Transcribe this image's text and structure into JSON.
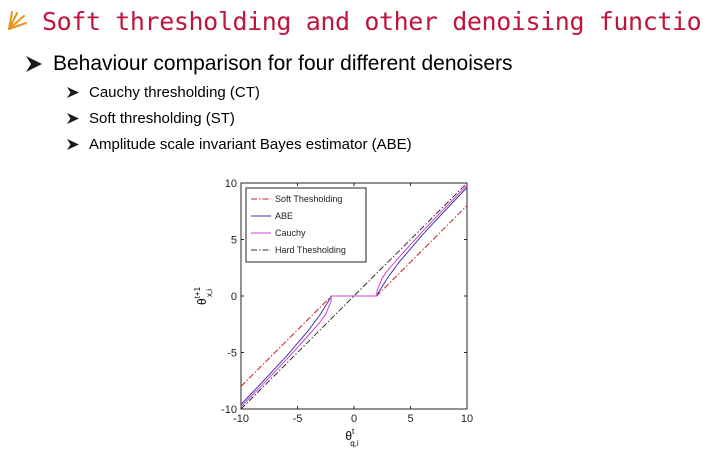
{
  "slide": {
    "title": "Soft thresholding and other denoising functions",
    "main_bullet": "Behaviour comparison for four different denoisers",
    "sub_bullets": [
      "Cauchy thresholding (CT)",
      "Soft thresholding (ST)",
      "Amplitude scale invariant Bayes estimator (ABE)"
    ],
    "title_color": "#c0143c",
    "icon": "sparkle-icon",
    "bullet_icon": "arrow-bullet-icon"
  },
  "chart_data": {
    "type": "line",
    "title": "",
    "xlabel_base": "θ",
    "xlabel_sup": "t",
    "xlabel_sub": "q,i",
    "ylabel_base": "θ",
    "ylabel_sup": "t+1",
    "ylabel_sub": "x,i",
    "xlim": [
      -10,
      10
    ],
    "ylim": [
      -10,
      10
    ],
    "xticks": [
      -10,
      -5,
      0,
      5,
      10
    ],
    "yticks": [
      -10,
      -5,
      0,
      5,
      10
    ],
    "grid": false,
    "legend_position": "top-left",
    "x": [
      -10,
      -8,
      -6,
      -4,
      -3,
      -2.5,
      -2.05,
      -2,
      0,
      2,
      2.05,
      2.5,
      3,
      4,
      6,
      8,
      10
    ],
    "series": [
      {
        "name": "Soft Thesholding",
        "color": "#cc2222",
        "dash": "6,2,1.5,2",
        "values": [
          -8,
          -6,
          -4,
          -2,
          -1,
          -0.5,
          -0.05,
          0,
          0,
          0,
          0.05,
          0.5,
          1,
          2,
          4,
          6,
          8
        ]
      },
      {
        "name": "ABE",
        "color": "#3a3aa8",
        "dash": "",
        "values": [
          -9.6,
          -7.5,
          -5.35,
          -3.0,
          -1.65,
          -0.85,
          -0.1,
          0,
          0,
          0,
          0.1,
          0.85,
          1.65,
          3.0,
          5.35,
          7.5,
          9.6
        ]
      },
      {
        "name": "Cauchy",
        "color": "#d040d0",
        "dash": "",
        "values": [
          -9.8,
          -7.75,
          -5.65,
          -3.45,
          -2.3,
          -1.6,
          -0.5,
          0,
          0,
          0,
          0.5,
          1.6,
          2.3,
          3.45,
          5.65,
          7.75,
          9.8
        ]
      },
      {
        "name": "Hard Thesholding",
        "color": "#333333",
        "dash": "6,2,1.5,2",
        "values": [
          -10,
          -8,
          -6,
          -4,
          -3,
          -2.5,
          -2.05,
          -2,
          0,
          2,
          2.05,
          2.5,
          3,
          4,
          6,
          8,
          10
        ]
      }
    ]
  }
}
